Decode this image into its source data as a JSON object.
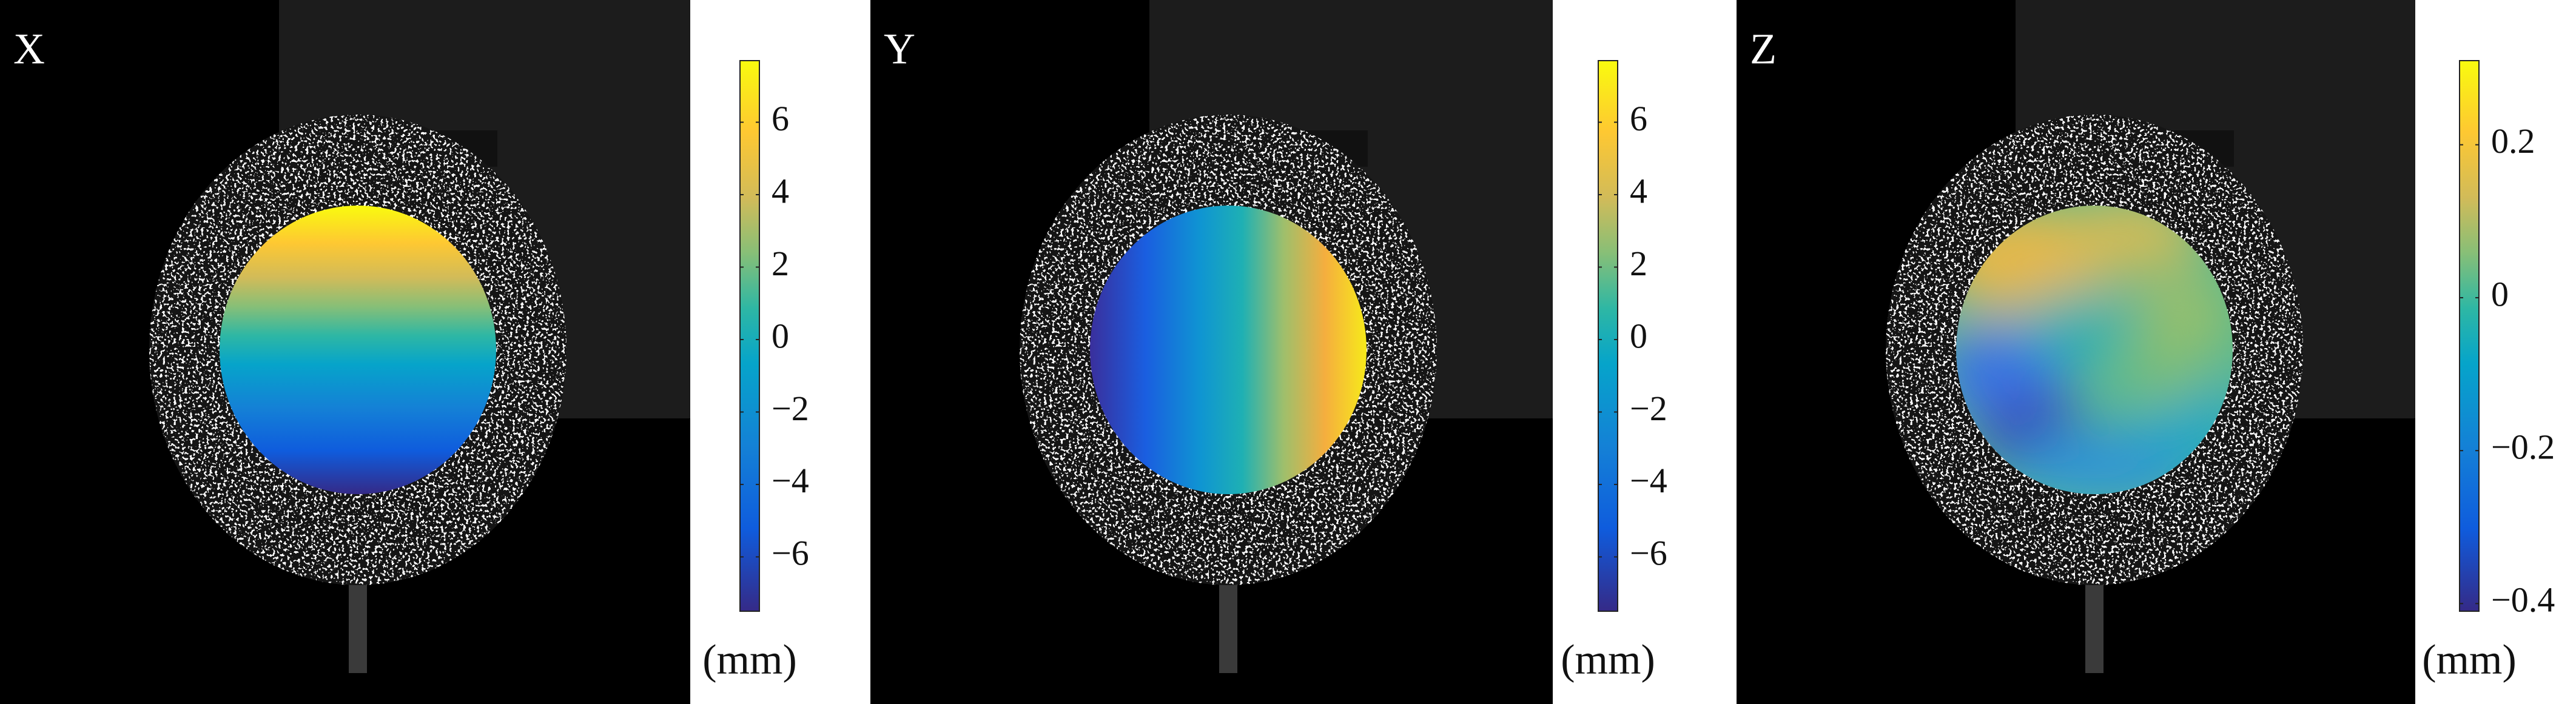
{
  "panels": [
    {
      "label": "X",
      "colorbar": {
        "lim": [
          -7.5,
          7.7
        ],
        "ticks": [
          {
            "value": -6,
            "label": "−6"
          },
          {
            "value": -4,
            "label": "−4"
          },
          {
            "value": -2,
            "label": "−2"
          },
          0,
          2,
          4,
          6
        ],
        "unit": "(mm)"
      }
    },
    {
      "label": "Y",
      "colorbar": {
        "lim": [
          -7.5,
          7.7
        ],
        "ticks": [
          {
            "value": -6,
            "label": "−6"
          },
          {
            "value": -4,
            "label": "−4"
          },
          {
            "value": -2,
            "label": "−2"
          },
          0,
          2,
          4,
          6
        ],
        "unit": "(mm)"
      }
    },
    {
      "label": "Z",
      "colorbar": {
        "lim": [
          -0.41,
          0.31
        ],
        "ticks": [
          {
            "value": -0.4,
            "label": "−0.4"
          },
          {
            "value": -0.2,
            "label": "−0.2"
          },
          0,
          0.2
        ],
        "unit": "(mm)"
      }
    }
  ]
}
